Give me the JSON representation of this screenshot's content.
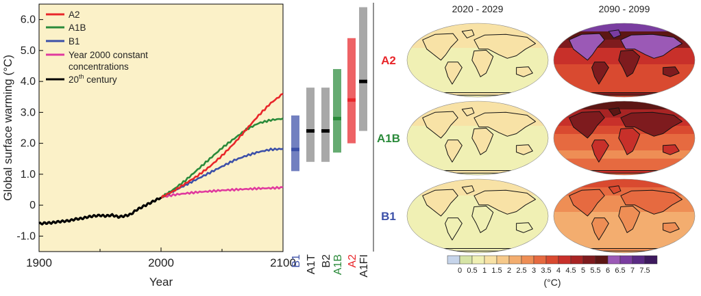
{
  "chart_data": [
    {
      "type": "line",
      "xlabel": "Year",
      "ylabel": "Global surface warming (°C)",
      "xlim": [
        1900,
        2100
      ],
      "ylim": [
        -1.5,
        6.5
      ],
      "xticks": [
        "1900",
        "2000",
        "2100"
      ],
      "xtick_values": [
        1900,
        2000,
        2100
      ],
      "yticks": [
        "-1.0",
        "0",
        "1.0",
        "2.0",
        "3.0",
        "4.0",
        "5.0",
        "6.0"
      ],
      "ytick_values": [
        -1,
        0,
        1,
        2,
        3,
        4,
        5,
        6
      ],
      "legend": [
        {
          "name": "A2",
          "color": "#e8262a"
        },
        {
          "name": "A1B",
          "color": "#2a8a3a"
        },
        {
          "name": "B1",
          "color": "#3b4fa8"
        },
        {
          "name": "Year 2000 constant\nconcentrations",
          "line1": "Year 2000 constant",
          "line2": "concentrations",
          "color": "#e0399e"
        },
        {
          "name": "20th century",
          "base": "20",
          "sup": "th",
          "rest": " century",
          "color": "#000000"
        }
      ],
      "series": [
        {
          "name": "20th century",
          "color": "#000000",
          "x": [
            1900,
            1905,
            1910,
            1915,
            1920,
            1925,
            1930,
            1935,
            1940,
            1945,
            1950,
            1955,
            1960,
            1965,
            1970,
            1975,
            1980,
            1985,
            1990,
            1995,
            2000
          ],
          "y": [
            -0.6,
            -0.58,
            -0.57,
            -0.54,
            -0.52,
            -0.5,
            -0.45,
            -0.43,
            -0.38,
            -0.35,
            -0.33,
            -0.35,
            -0.32,
            -0.38,
            -0.35,
            -0.3,
            -0.15,
            -0.05,
            0.05,
            0.15,
            0.25
          ]
        },
        {
          "name": "A2",
          "color": "#e8262a",
          "x": [
            2000,
            2010,
            2020,
            2030,
            2040,
            2050,
            2060,
            2070,
            2080,
            2090,
            2100
          ],
          "y": [
            0.25,
            0.45,
            0.7,
            0.95,
            1.25,
            1.6,
            2.0,
            2.45,
            2.9,
            3.3,
            3.6
          ]
        },
        {
          "name": "A1B",
          "color": "#2a8a3a",
          "x": [
            2000,
            2010,
            2020,
            2030,
            2040,
            2050,
            2060,
            2070,
            2080,
            2090,
            2100
          ],
          "y": [
            0.25,
            0.5,
            0.8,
            1.15,
            1.5,
            1.85,
            2.15,
            2.45,
            2.65,
            2.75,
            2.8
          ]
        },
        {
          "name": "B1",
          "color": "#3b4fa8",
          "x": [
            2000,
            2010,
            2020,
            2030,
            2040,
            2050,
            2060,
            2070,
            2080,
            2090,
            2100
          ],
          "y": [
            0.25,
            0.45,
            0.65,
            0.85,
            1.05,
            1.25,
            1.45,
            1.6,
            1.72,
            1.8,
            1.82
          ]
        },
        {
          "name": "Year 2000 constant concentrations",
          "color": "#e0399e",
          "x": [
            2000,
            2010,
            2020,
            2030,
            2040,
            2050,
            2060,
            2070,
            2080,
            2090,
            2100
          ],
          "y": [
            0.25,
            0.33,
            0.38,
            0.42,
            0.45,
            0.48,
            0.5,
            0.52,
            0.54,
            0.55,
            0.57
          ]
        }
      ]
    },
    {
      "type": "bar",
      "description_free": true,
      "ranges": [
        {
          "name": "B1",
          "color": "#3b4fa8",
          "low": 1.1,
          "high": 2.9,
          "best": 1.8
        },
        {
          "name": "A1T",
          "color": "#000000",
          "low": 1.4,
          "high": 3.8,
          "best": 2.4
        },
        {
          "name": "B2",
          "color": "#000000",
          "low": 1.4,
          "high": 3.8,
          "best": 2.4
        },
        {
          "name": "A1B",
          "color": "#2a8a3a",
          "low": 1.7,
          "high": 4.4,
          "best": 2.8
        },
        {
          "name": "A2",
          "color": "#e8262a",
          "low": 2.0,
          "high": 5.4,
          "best": 3.4
        },
        {
          "name": "A1FI",
          "color": "#000000",
          "low": 2.4,
          "high": 6.4,
          "best": 4.0
        }
      ]
    },
    {
      "type": "heatmap",
      "columns": [
        "2020 - 2029",
        "2090 - 2099"
      ],
      "rows": [
        {
          "name": "A2",
          "color": "#e8262a",
          "mean_2020": 0.9,
          "mean_2090": 4.5
        },
        {
          "name": "A1B",
          "color": "#2a8a3a",
          "mean_2020": 0.9,
          "mean_2090": 3.8
        },
        {
          "name": "B1",
          "color": "#3b4fa8",
          "mean_2020": 0.8,
          "mean_2090": 2.6
        }
      ],
      "colorbar": {
        "unit": "(°C)",
        "labels": [
          "0",
          "0.5",
          "1",
          "1.5",
          "2",
          "2.5",
          "3",
          "3.5",
          "4",
          "4.5",
          "5",
          "5.5",
          "6",
          "6.5",
          "7",
          "7.5"
        ],
        "colors": [
          "#c6d4ea",
          "#d6e4a6",
          "#f0f0b4",
          "#f8e2a6",
          "#f6c98a",
          "#f3ad6f",
          "#ee8e55",
          "#e66a40",
          "#d94a30",
          "#c8302a",
          "#a82424",
          "#7e1b1e",
          "#5c1614",
          "#9b59b6",
          "#7a3da0",
          "#5a2a84",
          "#3d1a5e"
        ]
      }
    }
  ]
}
